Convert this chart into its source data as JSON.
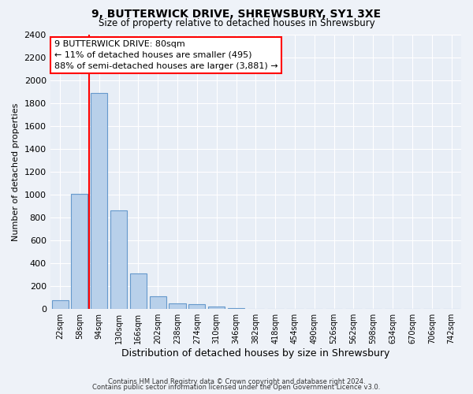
{
  "title1": "9, BUTTERWICK DRIVE, SHREWSBURY, SY1 3XE",
  "title2": "Size of property relative to detached houses in Shrewsbury",
  "xlabel": "Distribution of detached houses by size in Shrewsbury",
  "ylabel": "Number of detached properties",
  "bar_labels": [
    "22sqm",
    "58sqm",
    "94sqm",
    "130sqm",
    "166sqm",
    "202sqm",
    "238sqm",
    "274sqm",
    "310sqm",
    "346sqm",
    "382sqm",
    "418sqm",
    "454sqm",
    "490sqm",
    "526sqm",
    "562sqm",
    "598sqm",
    "634sqm",
    "670sqm",
    "706sqm",
    "742sqm"
  ],
  "bar_values": [
    80,
    1010,
    1890,
    860,
    310,
    110,
    50,
    40,
    25,
    10,
    0,
    0,
    0,
    0,
    0,
    0,
    0,
    0,
    0,
    0,
    0
  ],
  "bar_color": "#b8d0ea",
  "bar_edge_color": "#6699cc",
  "red_line_x": 1.5,
  "ylim": [
    0,
    2400
  ],
  "yticks": [
    0,
    200,
    400,
    600,
    800,
    1000,
    1200,
    1400,
    1600,
    1800,
    2000,
    2200,
    2400
  ],
  "annotation_title": "9 BUTTERWICK DRIVE: 80sqm",
  "annotation_line1": "← 11% of detached houses are smaller (495)",
  "annotation_line2": "88% of semi-detached houses are larger (3,881) →",
  "footer1": "Contains HM Land Registry data © Crown copyright and database right 2024.",
  "footer2": "Contains public sector information licensed under the Open Government Licence v3.0.",
  "background_color": "#eef2f8",
  "plot_bg_color": "#e8eef6"
}
